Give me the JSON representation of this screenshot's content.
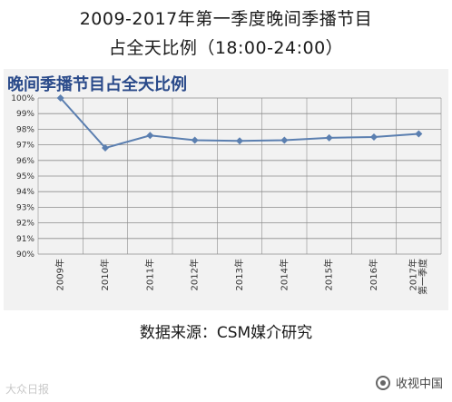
{
  "title_line1": "2009-2017年第一季度晚间季播节目",
  "title_line2": "占全天比例（18:00-24:00）",
  "panel_title": "晚间季播节目占全天比例",
  "source": "数据来源：CSM媒介研究",
  "watermark_left": "大众日报",
  "watermark_right": "收视中国",
  "colors": {
    "line": "#5b7fb0",
    "marker": "#5b7fb0",
    "grid": "#8c8c8c",
    "panel_bg": "#f2f2f2",
    "panel_title": "#2a4a8a"
  },
  "chart_data": {
    "type": "line",
    "categories": [
      "2009年",
      "2010年",
      "2011年",
      "2012年",
      "2013年",
      "2014年",
      "2015年",
      "2016年",
      "2017年第一季度"
    ],
    "values": [
      100.0,
      96.8,
      97.6,
      97.3,
      97.25,
      97.3,
      97.45,
      97.5,
      97.7
    ],
    "yticks": [
      "100%",
      "99%",
      "98%",
      "97%",
      "96%",
      "95%",
      "94%",
      "93%",
      "92%",
      "91%",
      "90%"
    ],
    "ylim": [
      90,
      100
    ],
    "grid": true,
    "marker": "diamond"
  }
}
